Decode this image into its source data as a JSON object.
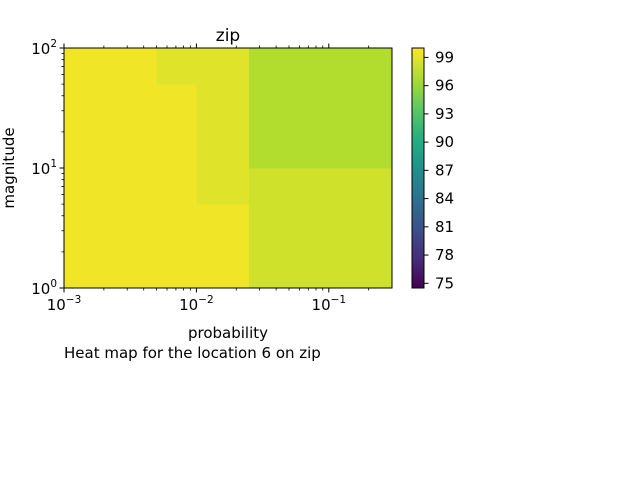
{
  "caption": "Heat map for the location 6 on zip",
  "chart_data": {
    "type": "heatmap",
    "title": "zip",
    "xlabel": "probability",
    "ylabel": "magnitude",
    "x_scale": "log",
    "y_scale": "log",
    "xlim": [
      0.001,
      0.3
    ],
    "ylim": [
      1,
      100
    ],
    "x_ticks": [
      {
        "value": 0.001,
        "base": "10",
        "exp": "−3"
      },
      {
        "value": 0.01,
        "base": "10",
        "exp": "−2"
      },
      {
        "value": 0.1,
        "base": "10",
        "exp": "−1"
      }
    ],
    "y_ticks": [
      {
        "value": 1,
        "base": "10",
        "exp": "0"
      },
      {
        "value": 10,
        "base": "10",
        "exp": "1"
      },
      {
        "value": 100,
        "base": "10",
        "exp": "2"
      }
    ],
    "x_edges": [
      0.001,
      0.005,
      0.01,
      0.025,
      0.3
    ],
    "y_edges": [
      1,
      5,
      10,
      50,
      100
    ],
    "values": [
      [
        99.5,
        99.5,
        99.5,
        98.2
      ],
      [
        99.5,
        99.5,
        98.8,
        98.2
      ],
      [
        99.5,
        99.5,
        98.8,
        97.0
      ],
      [
        99.5,
        98.8,
        98.8,
        97.0
      ]
    ],
    "colormap": "viridis",
    "colorbar": {
      "min": 74.5,
      "max": 100,
      "ticks": [
        "75",
        "78",
        "81",
        "84",
        "87",
        "90",
        "93",
        "96",
        "99"
      ]
    }
  }
}
